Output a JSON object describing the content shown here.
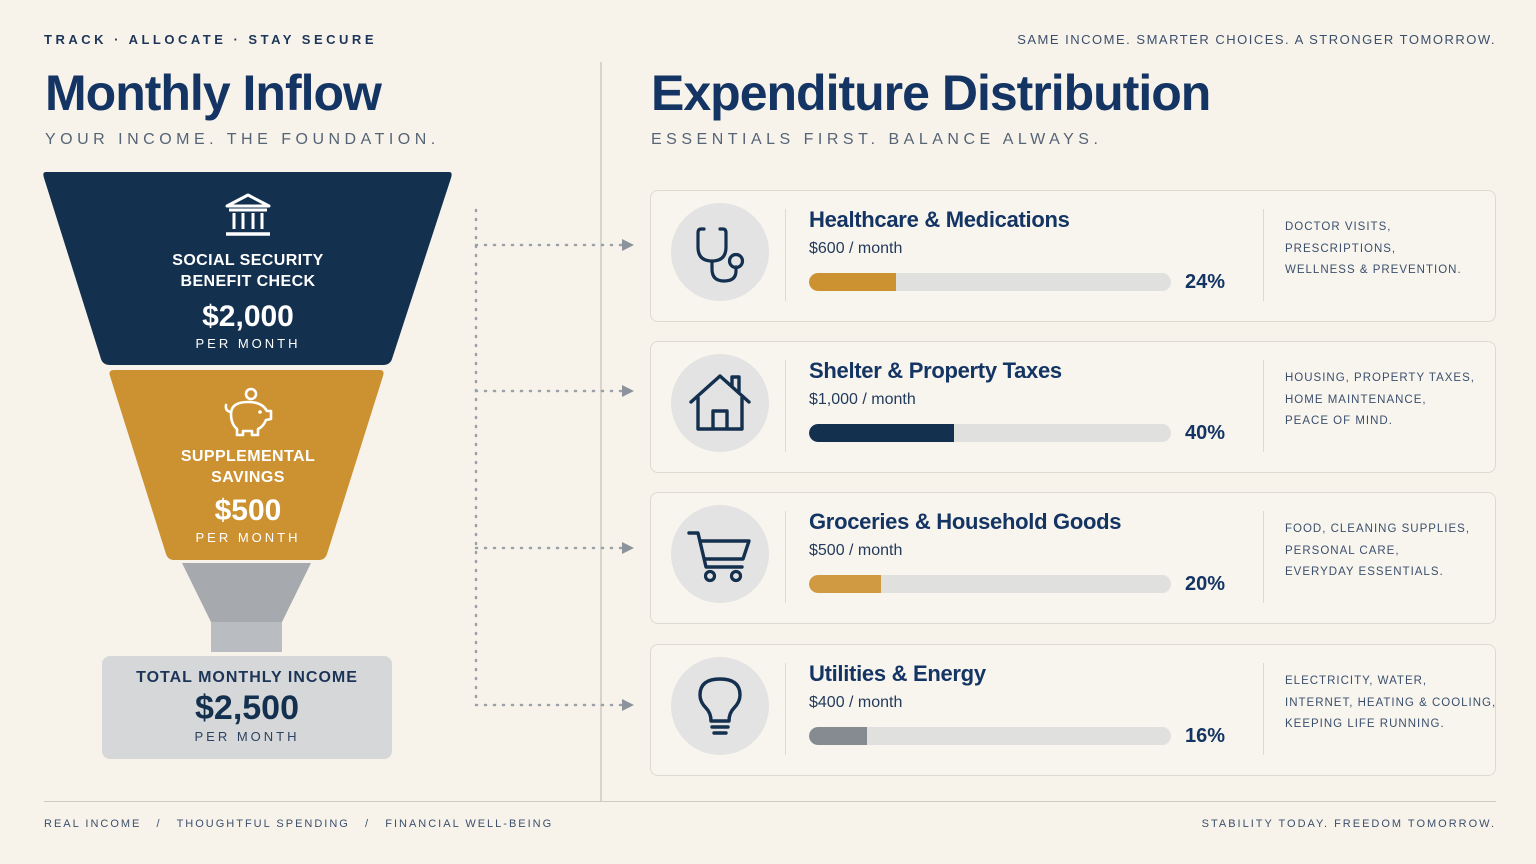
{
  "header": {
    "left_tagline": "TRACK · ALLOCATE · STAY SECURE",
    "right_tagline": "SAME INCOME. SMARTER CHOICES. A STRONGER TOMORROW."
  },
  "inflow": {
    "title": "Monthly Inflow",
    "subtitle": "YOUR INCOME. THE FOUNDATION.",
    "sources": [
      {
        "label_line1": "SOCIAL SECURITY",
        "label_line2": "BENEFIT CHECK",
        "value": "$2,000",
        "per": "PER MONTH",
        "icon": "bank-icon",
        "color": "#14304f"
      },
      {
        "label_line1": "SUPPLEMENTAL",
        "label_line2": "SAVINGS",
        "value": "$500",
        "per": "PER MONTH",
        "icon": "piggy-bank-icon",
        "color": "#cc9130"
      }
    ],
    "total": {
      "label": "TOTAL MONTHLY INCOME",
      "value": "$2,500",
      "per": "PER MONTH"
    }
  },
  "expenditure": {
    "title": "Expenditure Distribution",
    "subtitle": "ESSENTIALS FIRST. BALANCE ALWAYS.",
    "categories": [
      {
        "title": "Healthcare & Medications",
        "amount": "$600 / month",
        "percent": 24,
        "percent_label": "24%",
        "bar_color": "#cc9130",
        "icon": "stethoscope-icon",
        "desc": [
          "DOCTOR VISITS,",
          "PRESCRIPTIONS,",
          "WELLNESS & PREVENTION."
        ]
      },
      {
        "title": "Shelter & Property Taxes",
        "amount": "$1,000 / month",
        "percent": 40,
        "percent_label": "40%",
        "bar_color": "#14304f",
        "icon": "house-icon",
        "desc": [
          "HOUSING, PROPERTY TAXES,",
          "HOME MAINTENANCE,",
          "PEACE OF MIND."
        ]
      },
      {
        "title": "Groceries & Household Goods",
        "amount": "$500 / month",
        "percent": 20,
        "percent_label": "20%",
        "bar_color": "#d09a43",
        "icon": "shopping-cart-icon",
        "desc": [
          "FOOD, CLEANING SUPPLIES,",
          "PERSONAL CARE,",
          "EVERYDAY ESSENTIALS."
        ]
      },
      {
        "title": "Utilities & Energy",
        "amount": "$400 / month",
        "percent": 16,
        "percent_label": "16%",
        "bar_color": "#858b91",
        "icon": "lightbulb-icon",
        "desc": [
          "ELECTRICITY, WATER,",
          "INTERNET, HEATING & COOLING,",
          "KEEPING LIFE RUNNING."
        ]
      }
    ]
  },
  "footer": {
    "left": "REAL INCOME   /   THOUGHTFUL SPENDING   /   FINANCIAL WELL-BEING",
    "right": "STABILITY TODAY. FREEDOM TOMORROW."
  }
}
